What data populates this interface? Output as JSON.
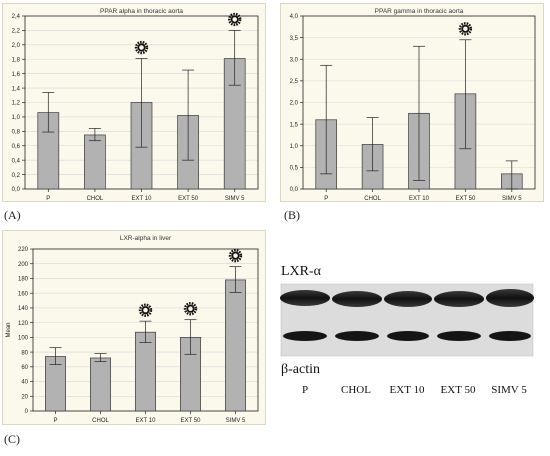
{
  "panels": {
    "a": {
      "letter": "(A)"
    },
    "b": {
      "letter": "(B)"
    },
    "c": {
      "letter": "(C)"
    }
  },
  "colors": {
    "panel_bg": "#fbf8ec",
    "bar": "#b2b2b2",
    "axis": "#222222",
    "grid": "#d8d8d8"
  },
  "chart_data": [
    {
      "type": "bar",
      "title": "PPAR alpha in thoracic aorta",
      "categories": [
        "P",
        "CHOL",
        "EXT 10",
        "EXT 50",
        "SIMV 5"
      ],
      "values": [
        1.06,
        0.75,
        1.2,
        1.02,
        1.81
      ],
      "error_low": [
        0.79,
        0.67,
        0.58,
        0.4,
        1.44
      ],
      "error_high": [
        1.34,
        0.84,
        1.81,
        1.65,
        2.2
      ],
      "significance_marker": [
        false,
        false,
        true,
        false,
        true
      ],
      "ylim": [
        0,
        2.4
      ],
      "yticks": [
        "0,0",
        "0,2",
        "0,4",
        "0,6",
        "0,8",
        "1,0",
        "1,2",
        "1,4",
        "1,6",
        "1,8",
        "2,0",
        "2,2",
        "2,4"
      ],
      "xlabel": "",
      "ylabel": "",
      "grid": true
    },
    {
      "type": "bar",
      "title": "PPAR gamma in thoracic aorta",
      "categories": [
        "P",
        "CHOL",
        "EXT 10",
        "EXT 50",
        "SIMV 5"
      ],
      "values": [
        1.6,
        1.03,
        1.75,
        2.2,
        0.35
      ],
      "error_low": [
        0.35,
        0.42,
        0.2,
        0.93,
        0.0
      ],
      "error_high": [
        2.86,
        1.65,
        3.3,
        3.45,
        0.65
      ],
      "significance_marker": [
        false,
        false,
        false,
        true,
        false
      ],
      "ylim": [
        0,
        4.0
      ],
      "yticks": [
        "0,0",
        "0,5",
        "1,0",
        "1,5",
        "2,0",
        "2,5",
        "3,0",
        "3,5",
        "4,0"
      ],
      "xlabel": "",
      "ylabel": "",
      "grid": true
    },
    {
      "type": "bar",
      "title": "LXR-alpha in liver",
      "categories": [
        "P",
        "CHOL",
        "EXT 10",
        "EXT 50",
        "SIMV 5"
      ],
      "values": [
        74,
        72,
        107,
        100,
        178
      ],
      "error_low": [
        63,
        67,
        93,
        77,
        161
      ],
      "error_high": [
        86,
        78,
        122,
        124,
        196
      ],
      "significance_marker": [
        false,
        false,
        true,
        true,
        true
      ],
      "ylim": [
        0,
        220
      ],
      "yticks": [
        "0",
        "20",
        "40",
        "60",
        "80",
        "100",
        "120",
        "140",
        "160",
        "180",
        "200",
        "220"
      ],
      "xlabel": "",
      "ylabel": "Mean",
      "grid": true
    }
  ],
  "blot": {
    "protein_top": "LXR-α",
    "protein_bottom": "β-actin",
    "lanes": [
      "P",
      "CHOL",
      "EXT 10",
      "EXT 50",
      "SIMV 5"
    ]
  }
}
